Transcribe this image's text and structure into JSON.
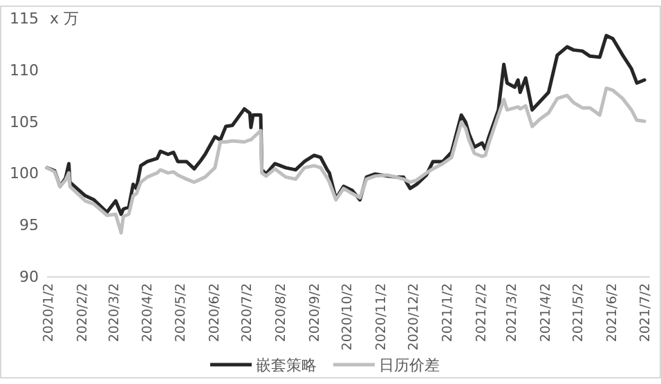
{
  "chart_data": {
    "type": "line",
    "ylabel": "x 万",
    "legend": "bottom",
    "grid": false,
    "line_style": "solid",
    "marker": "none",
    "x": [
      "2020-01-02",
      "2020-01-09",
      "2020-01-14",
      "2020-01-19",
      "2020-01-22",
      "2020-01-23",
      "2020-02-06",
      "2020-02-14",
      "2020-02-26",
      "2020-03-05",
      "2020-03-10",
      "2020-03-12",
      "2020-03-17",
      "2020-03-21",
      "2020-03-24",
      "2020-03-28",
      "2020-04-03",
      "2020-04-12",
      "2020-04-15",
      "2020-04-22",
      "2020-04-27",
      "2020-05-01",
      "2020-05-09",
      "2020-05-16",
      "2020-05-22",
      "2020-05-26",
      "2020-06-04",
      "2020-06-09",
      "2020-06-14",
      "2020-06-20",
      "2020-07-01",
      "2020-07-06",
      "2020-07-07",
      "2020-07-09",
      "2020-07-16",
      "2020-07-17",
      "2020-07-21",
      "2020-07-29",
      "2020-08-08",
      "2020-08-17",
      "2020-08-25",
      "2020-09-03",
      "2020-09-09",
      "2020-09-15",
      "2020-09-17",
      "2020-09-23",
      "2020-09-30",
      "2020-10-08",
      "2020-10-15",
      "2020-10-21",
      "2020-10-29",
      "2020-11-09",
      "2020-11-17",
      "2020-11-24",
      "2020-11-30",
      "2020-12-06",
      "2020-12-15",
      "2020-12-21",
      "2020-12-30",
      "2021-01-07",
      "2021-01-16",
      "2021-01-20",
      "2021-01-23",
      "2021-01-28",
      "2021-02-04",
      "2021-02-07",
      "2021-02-10",
      "2021-02-19",
      "2021-02-24",
      "2021-02-27",
      "2021-03-06",
      "2021-03-09",
      "2021-03-11",
      "2021-03-16",
      "2021-03-22",
      "2021-03-29",
      "2021-04-06",
      "2021-04-14",
      "2021-04-23",
      "2021-04-29",
      "2021-05-07",
      "2021-05-14",
      "2021-05-23",
      "2021-05-29",
      "2021-06-04",
      "2021-06-13",
      "2021-06-21",
      "2021-06-26",
      "2021-07-03"
    ],
    "series": [
      {
        "name": "嵌套策略",
        "color": "#262626",
        "values": [
          100.5,
          100.2,
          98.7,
          99.5,
          100.9,
          99.1,
          97.8,
          97.4,
          96.2,
          97.3,
          96.0,
          96.5,
          96.7,
          98.9,
          98.5,
          100.7,
          101.1,
          101.4,
          102.1,
          101.8,
          102.0,
          101.1,
          101.1,
          100.4,
          101.2,
          101.8,
          103.5,
          103.2,
          104.5,
          104.6,
          106.2,
          105.8,
          104.4,
          105.6,
          105.6,
          100.3,
          99.9,
          100.9,
          100.5,
          100.3,
          101.1,
          101.7,
          101.5,
          100.3,
          100.0,
          97.5,
          98.7,
          98.3,
          97.4,
          99.6,
          99.9,
          99.7,
          99.6,
          99.6,
          98.5,
          98.9,
          99.8,
          101.1,
          101.1,
          102.0,
          105.6,
          104.9,
          103.8,
          102.5,
          102.9,
          102.3,
          103.4,
          106.1,
          110.5,
          108.7,
          108.3,
          109.0,
          107.8,
          109.2,
          106.1,
          106.9,
          107.8,
          111.4,
          112.2,
          111.9,
          111.8,
          111.3,
          111.2,
          113.3,
          113.0,
          111.4,
          110.1,
          108.7,
          109.0
        ]
      },
      {
        "name": "日历价差",
        "color": "#bfbfbf",
        "values": [
          100.5,
          100.1,
          98.7,
          99.3,
          100.0,
          98.7,
          97.3,
          97.0,
          95.9,
          96.0,
          94.2,
          95.8,
          96.0,
          97.8,
          98.0,
          99.1,
          99.6,
          100.0,
          100.3,
          100.0,
          100.1,
          99.8,
          99.4,
          99.1,
          99.4,
          99.6,
          100.5,
          103.0,
          103.0,
          103.1,
          103.0,
          103.2,
          103.2,
          103.4,
          104.1,
          100.0,
          99.7,
          100.4,
          99.6,
          99.4,
          100.5,
          100.7,
          100.5,
          99.5,
          99.1,
          97.4,
          98.5,
          98.0,
          97.6,
          99.4,
          99.7,
          99.8,
          99.6,
          99.4,
          99.1,
          99.3,
          100.0,
          100.4,
          100.9,
          101.5,
          104.9,
          104.3,
          103.2,
          101.9,
          101.6,
          101.7,
          102.8,
          105.6,
          107.1,
          106.1,
          106.3,
          106.4,
          106.2,
          106.5,
          104.5,
          105.2,
          105.8,
          107.2,
          107.5,
          106.8,
          106.3,
          106.3,
          105.6,
          108.2,
          108.0,
          107.2,
          106.1,
          105.1,
          105.0
        ]
      }
    ],
    "xlim": [
      "2020-01-02",
      "2021-07-08"
    ],
    "xticks": [
      {
        "value": "2020-01-02",
        "label": "2020/1/2"
      },
      {
        "value": "2020-02-02",
        "label": "2020/2/2"
      },
      {
        "value": "2020-03-02",
        "label": "2020/3/2"
      },
      {
        "value": "2020-04-02",
        "label": "2020/4/2"
      },
      {
        "value": "2020-05-02",
        "label": "2020/5/2"
      },
      {
        "value": "2020-06-02",
        "label": "2020/6/2"
      },
      {
        "value": "2020-07-02",
        "label": "2020/7/2"
      },
      {
        "value": "2020-08-02",
        "label": "2020/8/2"
      },
      {
        "value": "2020-09-02",
        "label": "2020/9/2"
      },
      {
        "value": "2020-10-02",
        "label": "2020/10/2"
      },
      {
        "value": "2020-11-02",
        "label": "2020/11/2"
      },
      {
        "value": "2020-12-02",
        "label": "2020/12/2"
      },
      {
        "value": "2021-01-02",
        "label": "2021/1/2"
      },
      {
        "value": "2021-02-02",
        "label": "2021/2/2"
      },
      {
        "value": "2021-03-02",
        "label": "2021/3/2"
      },
      {
        "value": "2021-04-02",
        "label": "2021/4/2"
      },
      {
        "value": "2021-05-02",
        "label": "2021/5/2"
      },
      {
        "value": "2021-06-02",
        "label": "2021/6/2"
      },
      {
        "value": "2021-07-02",
        "label": "2021/7/2"
      }
    ],
    "ylim": [
      90,
      115
    ],
    "yticks": [
      90,
      95,
      100,
      105,
      110,
      115
    ]
  }
}
